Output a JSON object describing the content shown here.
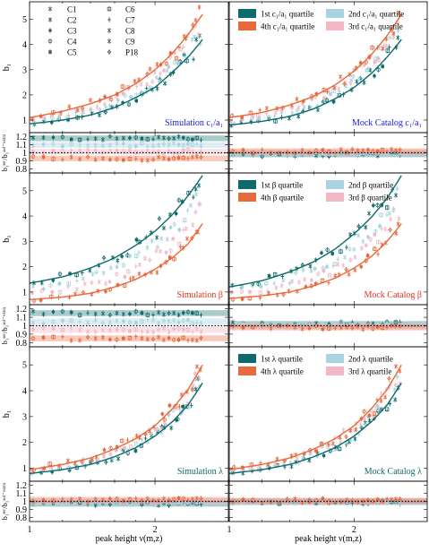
{
  "chart_data": {
    "type": "scatter",
    "xlabel": "peak height ν(m,z)",
    "x_ticks": [
      "1",
      "2"
    ],
    "x_scale": "log",
    "xlim": [
      1,
      3
    ],
    "main_ylabel": "b₁",
    "ratio_ylabel": "b₁ˢᵉᶜ/b₁ᵃᵒˡ⁻ᵉˣᵗʳᵃ",
    "main_yticks": [
      "1",
      "2",
      "3",
      "4",
      "5"
    ],
    "main_ylim": [
      0.5,
      5.7
    ],
    "ratio_yticks": [
      "0.8",
      "0.9",
      "1",
      "1.1",
      "1.2"
    ],
    "ratio_ylim": [
      0.75,
      1.25
    ],
    "colors": {
      "q1": "#0d6b6b",
      "q4": "#e8693b",
      "q2": "#a9d3e0",
      "q3": "#f2b8c6",
      "label": "#1a1ad6"
    },
    "simulations_legend": [
      {
        "name": "C1",
        "marker": "x"
      },
      {
        "name": "C2",
        "marker": "bar"
      },
      {
        "name": "C3",
        "marker": "circle"
      },
      {
        "name": "C4",
        "marker": "circle-open"
      },
      {
        "name": "C5",
        "marker": "square"
      },
      {
        "name": "C6",
        "marker": "square-open"
      },
      {
        "name": "C7",
        "marker": "plus"
      },
      {
        "name": "C8",
        "marker": "asterisk"
      },
      {
        "name": "C9",
        "marker": "star"
      },
      {
        "name": "P18",
        "marker": "diamond"
      }
    ],
    "rows": [
      {
        "property": "c/a",
        "left_label": "Simulation c₁/a₁",
        "right_label": "Mock Catalog c₁/a₁",
        "legend": [
          "1st c₁/a₁ quartile",
          "2nd c₁/a₁ quartile",
          "4th c₁/a₁ quartile",
          "3rd c₁/a₁ quartile"
        ],
        "sim_q1": {
          "nu": [
            1.0,
            1.2,
            1.4,
            1.6,
            1.8,
            2.0,
            2.2,
            2.4,
            2.6
          ],
          "b1": [
            0.85,
            1.0,
            1.2,
            1.5,
            1.9,
            2.3,
            2.9,
            3.5,
            4.2
          ]
        },
        "sim_q4": {
          "nu": [
            1.0,
            1.2,
            1.4,
            1.6,
            1.8,
            2.0,
            2.2,
            2.4,
            2.6
          ],
          "b1": [
            1.1,
            1.35,
            1.65,
            2.0,
            2.45,
            3.0,
            3.65,
            4.4,
            5.2
          ]
        },
        "mock_q1": {
          "nu": [
            1.0,
            1.2,
            1.4,
            1.6,
            1.8,
            2.0,
            2.2,
            2.4,
            2.6
          ],
          "b1": [
            0.8,
            0.95,
            1.15,
            1.45,
            1.85,
            2.3,
            2.85,
            3.5,
            4.2
          ]
        },
        "mock_q4": {
          "nu": [
            1.0,
            1.2,
            1.4,
            1.6,
            1.8,
            2.0,
            2.2,
            2.4,
            2.6
          ],
          "b1": [
            1.1,
            1.3,
            1.6,
            1.95,
            2.4,
            2.95,
            3.6,
            4.35,
            5.2
          ]
        },
        "sim_ratio_q1": 1.18,
        "sim_ratio_q4": 0.93,
        "mock_ratio_q1": 0.98,
        "mock_ratio_q4": 1.02
      },
      {
        "property": "beta",
        "left_label": "Simulation β",
        "right_label": "Mock Catalog β",
        "legend": [
          "1st β quartile",
          "2nd β quartile",
          "4th β quartile",
          "3rd β quartile"
        ],
        "sim_q1": {
          "nu": [
            1.0,
            1.2,
            1.4,
            1.6,
            1.8,
            2.0,
            2.2,
            2.4,
            2.6
          ],
          "b1": [
            1.35,
            1.6,
            1.95,
            2.35,
            2.85,
            3.4,
            4.05,
            4.8,
            5.6
          ]
        },
        "sim_q4": {
          "nu": [
            1.0,
            1.2,
            1.4,
            1.6,
            1.8,
            2.0,
            2.2,
            2.4,
            2.6
          ],
          "b1": [
            0.7,
            0.8,
            0.95,
            1.2,
            1.5,
            1.9,
            2.35,
            2.9,
            3.7
          ]
        },
        "mock_q1": {
          "nu": [
            1.0,
            1.2,
            1.4,
            1.6,
            1.8,
            2.0,
            2.2,
            2.4,
            2.6
          ],
          "b1": [
            1.2,
            1.45,
            1.8,
            2.2,
            2.7,
            3.3,
            3.95,
            4.7,
            5.6
          ]
        },
        "mock_q4": {
          "nu": [
            1.0,
            1.2,
            1.4,
            1.6,
            1.8,
            2.0,
            2.2,
            2.4,
            2.6
          ],
          "b1": [
            0.75,
            0.85,
            1.0,
            1.25,
            1.55,
            1.95,
            2.4,
            3.0,
            3.7
          ]
        },
        "sim_ratio_q1": 1.15,
        "sim_ratio_q4": 0.85,
        "mock_ratio_q1": 1.02,
        "mock_ratio_q4": 0.98
      },
      {
        "property": "lambda",
        "left_label": "Simulation λ",
        "right_label": "Mock Catalog λ",
        "legend": [
          "1st λ quartile",
          "2nd λ quartile",
          "4th λ quartile",
          "3rd λ quartile"
        ],
        "sim_q1": {
          "nu": [
            1.0,
            1.2,
            1.4,
            1.6,
            1.8,
            2.0,
            2.2,
            2.4,
            2.6
          ],
          "b1": [
            0.8,
            0.95,
            1.15,
            1.45,
            1.8,
            2.25,
            2.8,
            3.45,
            4.3
          ]
        },
        "sim_q4": {
          "nu": [
            1.0,
            1.2,
            1.4,
            1.6,
            1.8,
            2.0,
            2.2,
            2.4,
            2.6
          ],
          "b1": [
            0.95,
            1.15,
            1.4,
            1.75,
            2.15,
            2.65,
            3.3,
            4.05,
            5.0
          ]
        },
        "mock_q1": {
          "nu": [
            1.0,
            1.2,
            1.4,
            1.6,
            1.8,
            2.0,
            2.2,
            2.4,
            2.6
          ],
          "b1": [
            0.8,
            0.95,
            1.15,
            1.45,
            1.8,
            2.25,
            2.8,
            3.45,
            4.3
          ]
        },
        "mock_q4": {
          "nu": [
            1.0,
            1.2,
            1.4,
            1.6,
            1.8,
            2.0,
            2.2,
            2.4,
            2.6
          ],
          "b1": [
            0.95,
            1.15,
            1.4,
            1.75,
            2.15,
            2.65,
            3.3,
            4.05,
            5.0
          ]
        },
        "sim_ratio_q1": 0.97,
        "sim_ratio_q4": 1.02,
        "mock_ratio_q1": 0.99,
        "mock_ratio_q4": 1.01
      }
    ]
  }
}
